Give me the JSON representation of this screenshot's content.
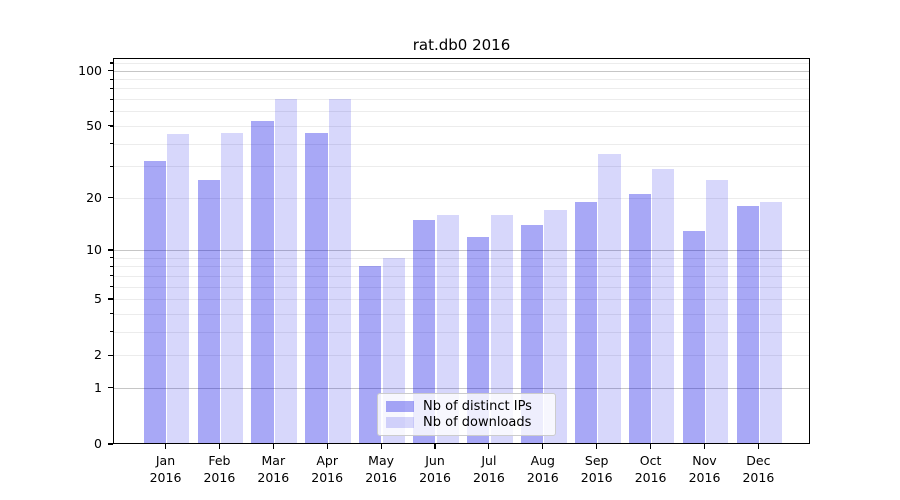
{
  "chart_data": {
    "type": "bar",
    "title": "rat.db0 2016",
    "categories": [
      "Jan",
      "Feb",
      "Mar",
      "Apr",
      "May",
      "Jun",
      "Jul",
      "Aug",
      "Sep",
      "Oct",
      "Nov",
      "Dec"
    ],
    "category_year": "2016",
    "series": [
      {
        "name": "Nb of distinct IPs",
        "color": "rgba(0,0,230,0.34)",
        "values": [
          32,
          25,
          53,
          46,
          8,
          15,
          12,
          14,
          19,
          21,
          13,
          18
        ]
      },
      {
        "name": "Nb of downloads",
        "color": "rgba(0,0,230,0.155)",
        "values": [
          45,
          46,
          70,
          70,
          9,
          16,
          16,
          17,
          35,
          29,
          25,
          19
        ]
      }
    ],
    "yscale": "log(1+v) (symlog-like, 0 shown)",
    "ylim": [
      0,
      117
    ],
    "y_major_ticks": [
      0,
      1,
      2,
      5,
      10,
      20,
      50,
      100
    ],
    "y_major_gridlines": [
      1,
      10,
      100
    ],
    "y_minor_gridlines": [
      2,
      3,
      4,
      5,
      6,
      7,
      8,
      9,
      20,
      30,
      40,
      50,
      60,
      70,
      80,
      90,
      110
    ],
    "grid": "horizontal only",
    "legend_position": "lower center",
    "colors": {
      "bar_distinct_ips": "#a8a8f7",
      "bar_downloads": "#d9d9fb",
      "major_grid": "#c6c6c6",
      "minor_grid": "#ececec",
      "axis": "#000000",
      "background": "#ffffff"
    }
  }
}
